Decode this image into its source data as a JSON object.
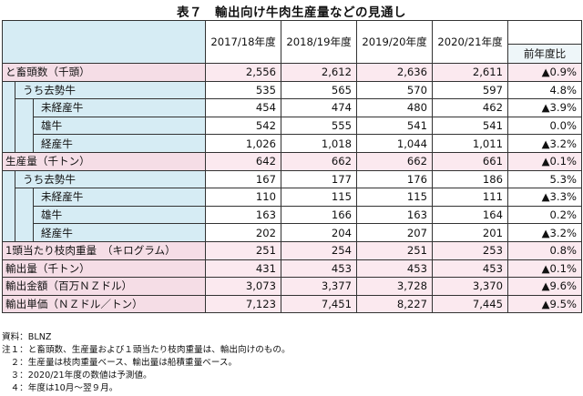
{
  "title": "表７　輸出向け牛肉生産量などの見通し",
  "headers": {
    "years": [
      "2017/18年度",
      "2018/19年度",
      "2019/20年度",
      "2020/21年度"
    ],
    "change": "前年度比"
  },
  "rows": [
    {
      "label": "と畜頭数（千頭）",
      "values": [
        "2,556",
        "2,612",
        "2,636",
        "2,611"
      ],
      "change": "▲0.9%"
    },
    {
      "label": "うち去勢牛",
      "values": [
        "535",
        "565",
        "570",
        "597"
      ],
      "change": "4.8%"
    },
    {
      "label": "未経産牛",
      "values": [
        "454",
        "474",
        "480",
        "462"
      ],
      "change": "▲3.9%"
    },
    {
      "label": "雄牛",
      "values": [
        "542",
        "555",
        "541",
        "541"
      ],
      "change": "0.0%"
    },
    {
      "label": "経産牛",
      "values": [
        "1,026",
        "1,018",
        "1,044",
        "1,011"
      ],
      "change": "▲3.2%"
    },
    {
      "label": "生産量（千トン）",
      "values": [
        "642",
        "662",
        "662",
        "661"
      ],
      "change": "▲0.1%"
    },
    {
      "label": "うち去勢牛",
      "values": [
        "167",
        "177",
        "176",
        "186"
      ],
      "change": "5.3%"
    },
    {
      "label": "未経産牛",
      "values": [
        "110",
        "115",
        "115",
        "111"
      ],
      "change": "▲3.3%"
    },
    {
      "label": "雄牛",
      "values": [
        "163",
        "166",
        "163",
        "164"
      ],
      "change": "0.2%"
    },
    {
      "label": "経産牛",
      "values": [
        "202",
        "204",
        "207",
        "201"
      ],
      "change": "▲3.2%"
    },
    {
      "label": "1頭当たり枝肉重量　（キログラム）",
      "values": [
        "251",
        "254",
        "251",
        "253"
      ],
      "change": "0.8%"
    },
    {
      "label": "輸出量（千トン）",
      "values": [
        "431",
        "453",
        "453",
        "453"
      ],
      "change": "▲0.1%"
    },
    {
      "label": "輸出金額（百万ＮＺドル）",
      "values": [
        "3,073",
        "3,377",
        "3,728",
        "3,370"
      ],
      "change": "▲9.6%"
    },
    {
      "label": "輸出単価（ＮＺドル／トン）",
      "values": [
        "7,123",
        "7,451",
        "8,227",
        "7,445"
      ],
      "change": "▲9.5%"
    }
  ],
  "notes": [
    "資料：BLNZ",
    "注１：と畜頭数、生産量および１頭当たり枝肉重量は、輸出向けのもの。",
    "　２：生産量は枝肉重量ベース、輸出量は船積重量ベース。",
    "　３：2020/21年度の数値は予測値。",
    "　４：年度は10月～翌９月。"
  ]
}
